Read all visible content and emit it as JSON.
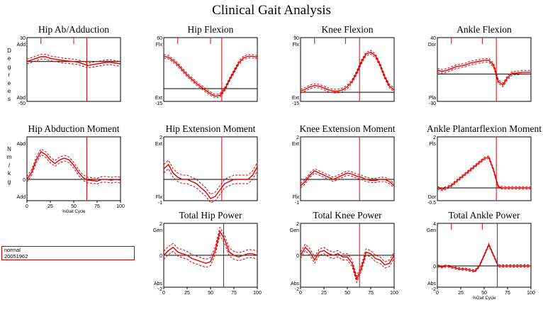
{
  "title": "Clinical Gait Analysis",
  "legend": {
    "entries": [
      "normal",
      "20051962"
    ]
  },
  "colors": {
    "curve": "#dd0000",
    "frame": "#000000"
  },
  "row_labels": [
    {
      "chars": [
        "D",
        "e",
        "g",
        "r",
        "e",
        "e",
        "s"
      ]
    },
    {
      "chars": [
        "N",
        "m",
        "/",
        "k",
        "g"
      ]
    }
  ],
  "x_axis_label": "%Gait Cycle",
  "chart_data": [
    {
      "type": "line",
      "title": "Hip Ab/Adduction",
      "ylim": [
        -50,
        30
      ],
      "yticks": [
        "30",
        "Add",
        "",
        "Abd",
        "-50"
      ],
      "zero": 0,
      "xlim": [
        0,
        100
      ],
      "xticks": [],
      "xlabel": "",
      "toe_off": 64,
      "events": [
        15,
        50
      ],
      "x": [
        0,
        5,
        10,
        15,
        20,
        25,
        30,
        35,
        40,
        45,
        50,
        55,
        60,
        65,
        70,
        75,
        80,
        85,
        90,
        95,
        100
      ],
      "values": [
        0,
        2,
        4,
        6,
        6,
        4,
        3,
        2,
        1,
        0.5,
        0,
        -1,
        -3,
        -5,
        -4,
        -3,
        -2,
        -1,
        -1,
        -2,
        -3
      ],
      "spread": 3
    },
    {
      "type": "line",
      "title": "Hip Flexion",
      "ylim": [
        -15,
        60
      ],
      "yticks": [
        "60",
        "Flx",
        "",
        "Ext",
        "-15"
      ],
      "zero": 0,
      "xlim": [
        0,
        100
      ],
      "xticks": [],
      "xlabel": "",
      "toe_off": 62,
      "events": [
        15,
        50
      ],
      "x": [
        0,
        5,
        10,
        15,
        20,
        25,
        30,
        35,
        40,
        45,
        50,
        55,
        60,
        65,
        70,
        75,
        80,
        85,
        90,
        95,
        100
      ],
      "values": [
        38,
        37,
        33,
        28,
        22,
        16,
        11,
        6,
        2,
        -2,
        -6,
        -9,
        -8,
        -1,
        10,
        20,
        30,
        36,
        38,
        38,
        37
      ],
      "spread": 2
    },
    {
      "type": "line",
      "title": "Knee Flexion",
      "ylim": [
        -15,
        90
      ],
      "yticks": [
        "90",
        "Flx",
        "",
        "Ext",
        "-15"
      ],
      "zero": 0,
      "xlim": [
        0,
        100
      ],
      "xticks": [],
      "xlabel": "",
      "toe_off": 63,
      "events": [
        15,
        48
      ],
      "x": [
        0,
        5,
        10,
        15,
        20,
        25,
        30,
        35,
        40,
        45,
        50,
        55,
        60,
        65,
        70,
        75,
        80,
        85,
        90,
        95,
        100
      ],
      "values": [
        2,
        5,
        9,
        11,
        10,
        7,
        4,
        2,
        2,
        4,
        9,
        18,
        32,
        50,
        63,
        66,
        60,
        45,
        25,
        10,
        4
      ],
      "spread": 3
    },
    {
      "type": "line",
      "title": "Ankle Flexion",
      "ylim": [
        -30,
        40
      ],
      "yticks": [
        "40",
        "Dor",
        "",
        "Pla",
        "-30"
      ],
      "zero": 0,
      "xlim": [
        0,
        100
      ],
      "xticks": [],
      "xlabel": "",
      "toe_off": 63,
      "events": [
        15,
        48
      ],
      "x": [
        0,
        5,
        10,
        15,
        20,
        25,
        30,
        35,
        40,
        45,
        50,
        55,
        60,
        65,
        70,
        75,
        80,
        85,
        90,
        95,
        100
      ],
      "values": [
        4,
        3,
        4,
        6,
        8,
        9,
        10,
        12,
        13,
        14,
        15,
        15,
        10,
        -8,
        -12,
        -4,
        1,
        1,
        2,
        2,
        2
      ],
      "spread": 2
    },
    {
      "type": "line",
      "title": "Hip Abduction Moment",
      "ylim": [
        -0.6,
        1.2
      ],
      "yticks": [
        "",
        "Abd",
        "0",
        "Add",
        ""
      ],
      "zero": 0,
      "xlim": [
        0,
        100
      ],
      "xticks": [
        "0",
        "25",
        "50",
        "75",
        "100"
      ],
      "xlabel": "%Gait Cycle",
      "toe_off": 64,
      "events": [],
      "x": [
        0,
        5,
        10,
        15,
        20,
        25,
        30,
        35,
        40,
        45,
        50,
        55,
        60,
        65,
        70,
        75,
        80,
        85,
        90,
        95,
        100
      ],
      "values": [
        0,
        0.2,
        0.55,
        0.78,
        0.7,
        0.55,
        0.45,
        0.55,
        0.6,
        0.55,
        0.4,
        0.2,
        0.05,
        -0.02,
        -0.03,
        -0.05,
        0,
        0,
        -0.02,
        0,
        -0.02
      ],
      "spread": 0.08
    },
    {
      "type": "line",
      "title": "Hip Extension Moment",
      "ylim": [
        -1,
        2
      ],
      "yticks": [
        "2",
        "Ext",
        "",
        "Flx",
        "-1"
      ],
      "zero": 0,
      "xlim": [
        0,
        100
      ],
      "xticks": [],
      "xlabel": "",
      "toe_off": 62,
      "events": [],
      "x": [
        0,
        5,
        10,
        15,
        20,
        25,
        30,
        35,
        40,
        45,
        50,
        55,
        60,
        65,
        70,
        75,
        80,
        85,
        90,
        95,
        100
      ],
      "values": [
        0.5,
        0.7,
        0.3,
        0.1,
        0,
        0,
        -0.1,
        -0.2,
        -0.4,
        -0.6,
        -0.9,
        -0.8,
        -0.5,
        -0.2,
        -0.1,
        0,
        0,
        0,
        0,
        0.2,
        0.6
      ],
      "spread": 0.2
    },
    {
      "type": "line",
      "title": "Knee Extension Moment",
      "ylim": [
        -1,
        2
      ],
      "yticks": [
        "2",
        "Ext",
        "",
        "Flx",
        "-1"
      ],
      "zero": 0,
      "xlim": [
        0,
        100
      ],
      "xticks": [],
      "xlabel": "",
      "toe_off": 63,
      "events": [],
      "x": [
        0,
        5,
        10,
        15,
        20,
        25,
        30,
        35,
        40,
        45,
        50,
        55,
        60,
        65,
        70,
        75,
        80,
        85,
        90,
        95,
        100
      ],
      "values": [
        -0.3,
        -0.1,
        0.2,
        0.4,
        0.3,
        0.2,
        0.1,
        0,
        0.1,
        0.2,
        0.3,
        0.25,
        0.15,
        0.1,
        0,
        -0.05,
        -0.05,
        0,
        0,
        -0.1,
        -0.3
      ],
      "spread": 0.1
    },
    {
      "type": "line",
      "title": "Ankle Plantarflexion Moment",
      "ylim": [
        -0.5,
        2
      ],
      "yticks": [
        "2",
        "Pls",
        "",
        "Dor",
        "-0.5"
      ],
      "zero": 0,
      "xlim": [
        0,
        100
      ],
      "xticks": [],
      "xlabel": "",
      "toe_off": 63,
      "events": [],
      "x": [
        0,
        5,
        10,
        15,
        20,
        25,
        30,
        35,
        40,
        45,
        50,
        55,
        60,
        65,
        70,
        75,
        80,
        85,
        90,
        95,
        100
      ],
      "values": [
        0,
        -0.05,
        0,
        0.1,
        0.25,
        0.4,
        0.55,
        0.7,
        0.85,
        1,
        1.15,
        1.2,
        0.7,
        0.05,
        0,
        0,
        0,
        0,
        0,
        0,
        0
      ],
      "spread": 0.05
    },
    {
      "type": "line",
      "title": "Total Hip Power",
      "ylim": [
        -2,
        2
      ],
      "yticks": [
        "2",
        "Gen",
        "0",
        "Abs",
        "-2"
      ],
      "zero": 0,
      "xlim": [
        0,
        100
      ],
      "xticks": [
        "0",
        "25",
        "50",
        "75",
        "100"
      ],
      "xlabel": "",
      "toe_off": 64,
      "events": [],
      "x": [
        0,
        5,
        10,
        15,
        20,
        25,
        30,
        35,
        40,
        45,
        50,
        55,
        60,
        65,
        70,
        75,
        80,
        85,
        90,
        95,
        100
      ],
      "values": [
        0,
        0.3,
        0.5,
        0.2,
        0.1,
        0,
        -0.2,
        -0.3,
        -0.4,
        -0.5,
        -0.4,
        0.3,
        1.5,
        1,
        0.2,
        0,
        -0.1,
        0,
        0.1,
        0.1,
        0
      ],
      "spread": 0.25
    },
    {
      "type": "line",
      "title": "Total Knee Power",
      "ylim": [
        -2,
        2
      ],
      "yticks": [
        "2",
        "Gen",
        "0",
        "Abs",
        "-2"
      ],
      "zero": 0,
      "xlim": [
        0,
        100
      ],
      "xticks": [
        "0",
        "25",
        "50",
        "75",
        "100"
      ],
      "xlabel": "",
      "toe_off": 63,
      "events": [],
      "x": [
        0,
        5,
        10,
        15,
        20,
        25,
        30,
        35,
        40,
        45,
        50,
        55,
        60,
        65,
        70,
        75,
        80,
        85,
        90,
        95,
        100
      ],
      "values": [
        0,
        0.5,
        0.2,
        -0.3,
        0.2,
        0.3,
        0.1,
        0,
        0.1,
        -0.1,
        -0.1,
        -0.5,
        -1.5,
        -0.8,
        0.2,
        0.1,
        -0.2,
        -0.3,
        -0.6,
        -0.5,
        0
      ],
      "spread": 0.2
    },
    {
      "type": "line",
      "title": "Total Ankle Power",
      "ylim": [
        -2,
        4
      ],
      "yticks": [
        "4",
        "Gen",
        "0",
        "Abs",
        "-2"
      ],
      "zero": 0,
      "xlim": [
        0,
        100
      ],
      "xticks": [
        "0",
        "25",
        "50",
        "75",
        "100"
      ],
      "xlabel": "%Gait Cycle",
      "toe_off": 64,
      "events": [
        15,
        48
      ],
      "x": [
        0,
        5,
        10,
        15,
        20,
        25,
        30,
        35,
        40,
        45,
        50,
        55,
        60,
        65,
        70,
        75,
        80,
        85,
        90,
        95,
        100
      ],
      "values": [
        0,
        -0.1,
        0,
        -0.1,
        -0.2,
        -0.3,
        -0.3,
        -0.4,
        -0.5,
        0,
        1,
        2,
        1,
        0,
        0,
        0,
        0,
        0,
        0,
        0,
        0
      ],
      "spread": 0.1
    }
  ]
}
